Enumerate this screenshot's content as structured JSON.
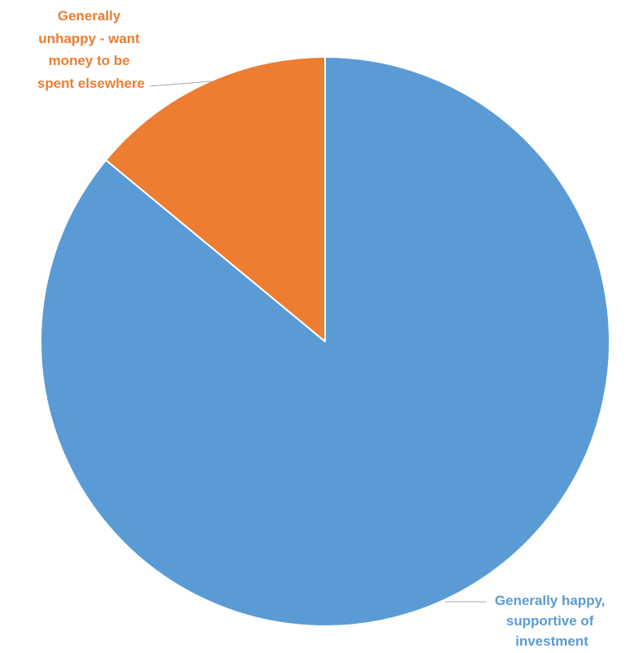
{
  "chart_data": {
    "type": "pie",
    "title": "",
    "start_angle_deg": 0,
    "direction": "clockwise",
    "slices": [
      {
        "label_lines": [
          "Generally happy,",
          "supportive of",
          "investment"
        ],
        "value": 86,
        "color": "#5B9BD5",
        "label_color": "#5B9BD5"
      },
      {
        "label_lines": [
          "Generally",
          "unhappy - want",
          "money to be",
          "spent elsewhere"
        ],
        "value": 14,
        "color": "#ED7D31",
        "label_color": "#ED7D31"
      }
    ],
    "leader_line_color": "#A6A6A6"
  }
}
